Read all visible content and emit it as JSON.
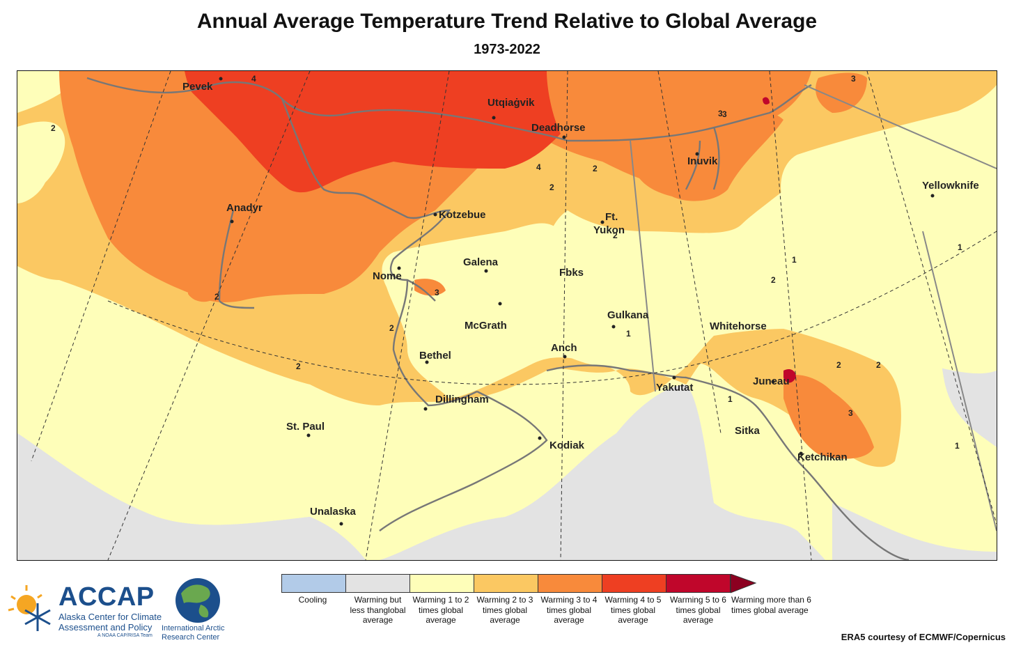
{
  "title": "Annual Average Temperature Trend Relative to Global Average",
  "subtitle": "1973-2022",
  "colors": {
    "cooling": "#b2cbe8",
    "warming_less_than_global": "#e3e3e3",
    "warming_1_2": "#fefeb9",
    "warming_2_3": "#fbc862",
    "warming_3_4": "#f88a3b",
    "warming_4_5": "#ee3f22",
    "warming_5_6": "#c0062b",
    "warming_gt6": "#8c0020",
    "outline": "#777777"
  },
  "cities": [
    {
      "name": "Pevek"
    },
    {
      "name": "Utqiaġvik"
    },
    {
      "name": "Deadhorse"
    },
    {
      "name": "Inuvik"
    },
    {
      "name": "Yellowknife"
    },
    {
      "name": "Anadyr"
    },
    {
      "name": "Kotzebue"
    },
    {
      "name": "Ft."
    },
    {
      "name": "Yukon"
    },
    {
      "name": "Galena"
    },
    {
      "name": "Nome"
    },
    {
      "name": "Fbks"
    },
    {
      "name": "Gulkana"
    },
    {
      "name": "McGrath"
    },
    {
      "name": "Whitehorse"
    },
    {
      "name": "Anch"
    },
    {
      "name": "Bethel"
    },
    {
      "name": "Juneau"
    },
    {
      "name": "Yakutat"
    },
    {
      "name": "Dillingham"
    },
    {
      "name": "St. Paul"
    },
    {
      "name": "Sitka"
    },
    {
      "name": "Kodiak"
    },
    {
      "name": "Ketchikan"
    },
    {
      "name": "Unalaska"
    }
  ],
  "contour_labels": [
    "4",
    "4",
    "2",
    "3",
    "3",
    "2",
    "2",
    "2",
    "1",
    "2",
    "3",
    "1",
    "2",
    "2",
    "2",
    "2",
    "3",
    "1",
    "1",
    "1",
    "3",
    "2"
  ],
  "legend": [
    {
      "label": "Cooling",
      "color": "#b2cbe8"
    },
    {
      "label": "Warming but less thanglobal average",
      "color": "#e3e3e3"
    },
    {
      "label": "Warming 1 to 2 times global average",
      "color": "#fefeb9"
    },
    {
      "label": "Warming 2 to 3 times global average",
      "color": "#fbc862"
    },
    {
      "label": "Warming 3 to 4 times global average",
      "color": "#f88a3b"
    },
    {
      "label": "Warming 4 to 5 times global average",
      "color": "#ee3f22"
    },
    {
      "label": "Warming 5 to 6 times global average",
      "color": "#c0062b"
    },
    {
      "label": "Warming more than 6 times global average",
      "color": "#8c0020"
    }
  ],
  "logos": {
    "accap_name": "ACCAP",
    "accap_line1": "Alaska Center for Climate",
    "accap_line2": "Assessment and Policy",
    "accap_tag": "A NOAA CAP/RISA Team",
    "iarc_line1": "International Arctic",
    "iarc_line2": "Research Center"
  },
  "credit": "ERA5 courtesy of ECMWF/Copernicus"
}
